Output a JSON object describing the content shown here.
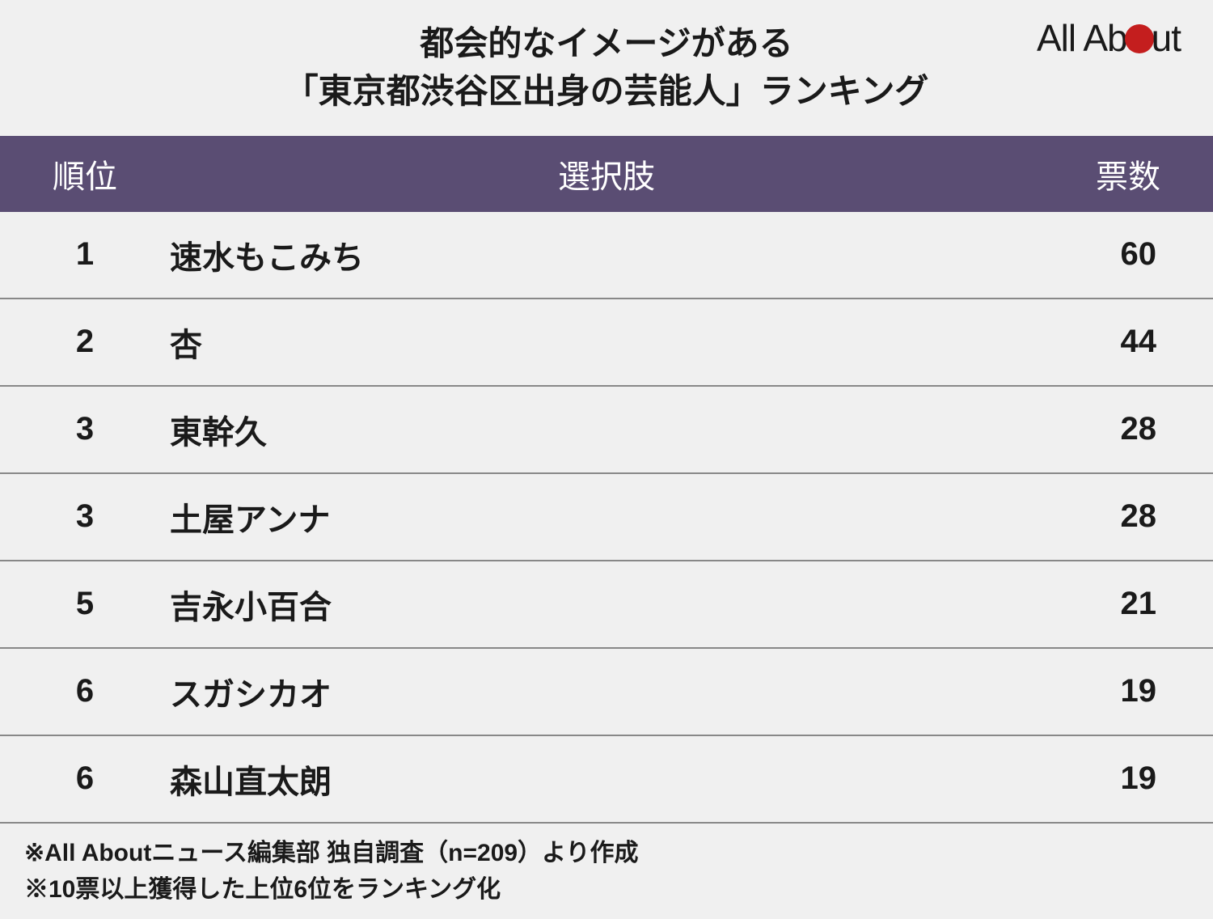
{
  "logo": {
    "text_before": "All Ab",
    "text_after": "ut",
    "dot_color": "#c41e1e"
  },
  "title": {
    "line1": "都会的なイメージがある",
    "line2": "「東京都渋谷区出身の芸能人」ランキング"
  },
  "table": {
    "header_bg": "#5a4d73",
    "header_color": "#ffffff",
    "border_color": "#888888",
    "columns": {
      "rank": "順位",
      "name": "選択肢",
      "votes": "票数"
    },
    "rows": [
      {
        "rank": "1",
        "name": "速水もこみち",
        "votes": "60"
      },
      {
        "rank": "2",
        "name": "杏",
        "votes": "44"
      },
      {
        "rank": "3",
        "name": "東幹久",
        "votes": "28"
      },
      {
        "rank": "3",
        "name": "土屋アンナ",
        "votes": "28"
      },
      {
        "rank": "5",
        "name": "吉永小百合",
        "votes": "21"
      },
      {
        "rank": "6",
        "name": "スガシカオ",
        "votes": "19"
      },
      {
        "rank": "6",
        "name": "森山直太朗",
        "votes": "19"
      }
    ]
  },
  "footer": {
    "line1": "※All Aboutニュース編集部 独自調査（n=209）より作成",
    "line2": "※10票以上獲得した上位6位をランキング化"
  }
}
